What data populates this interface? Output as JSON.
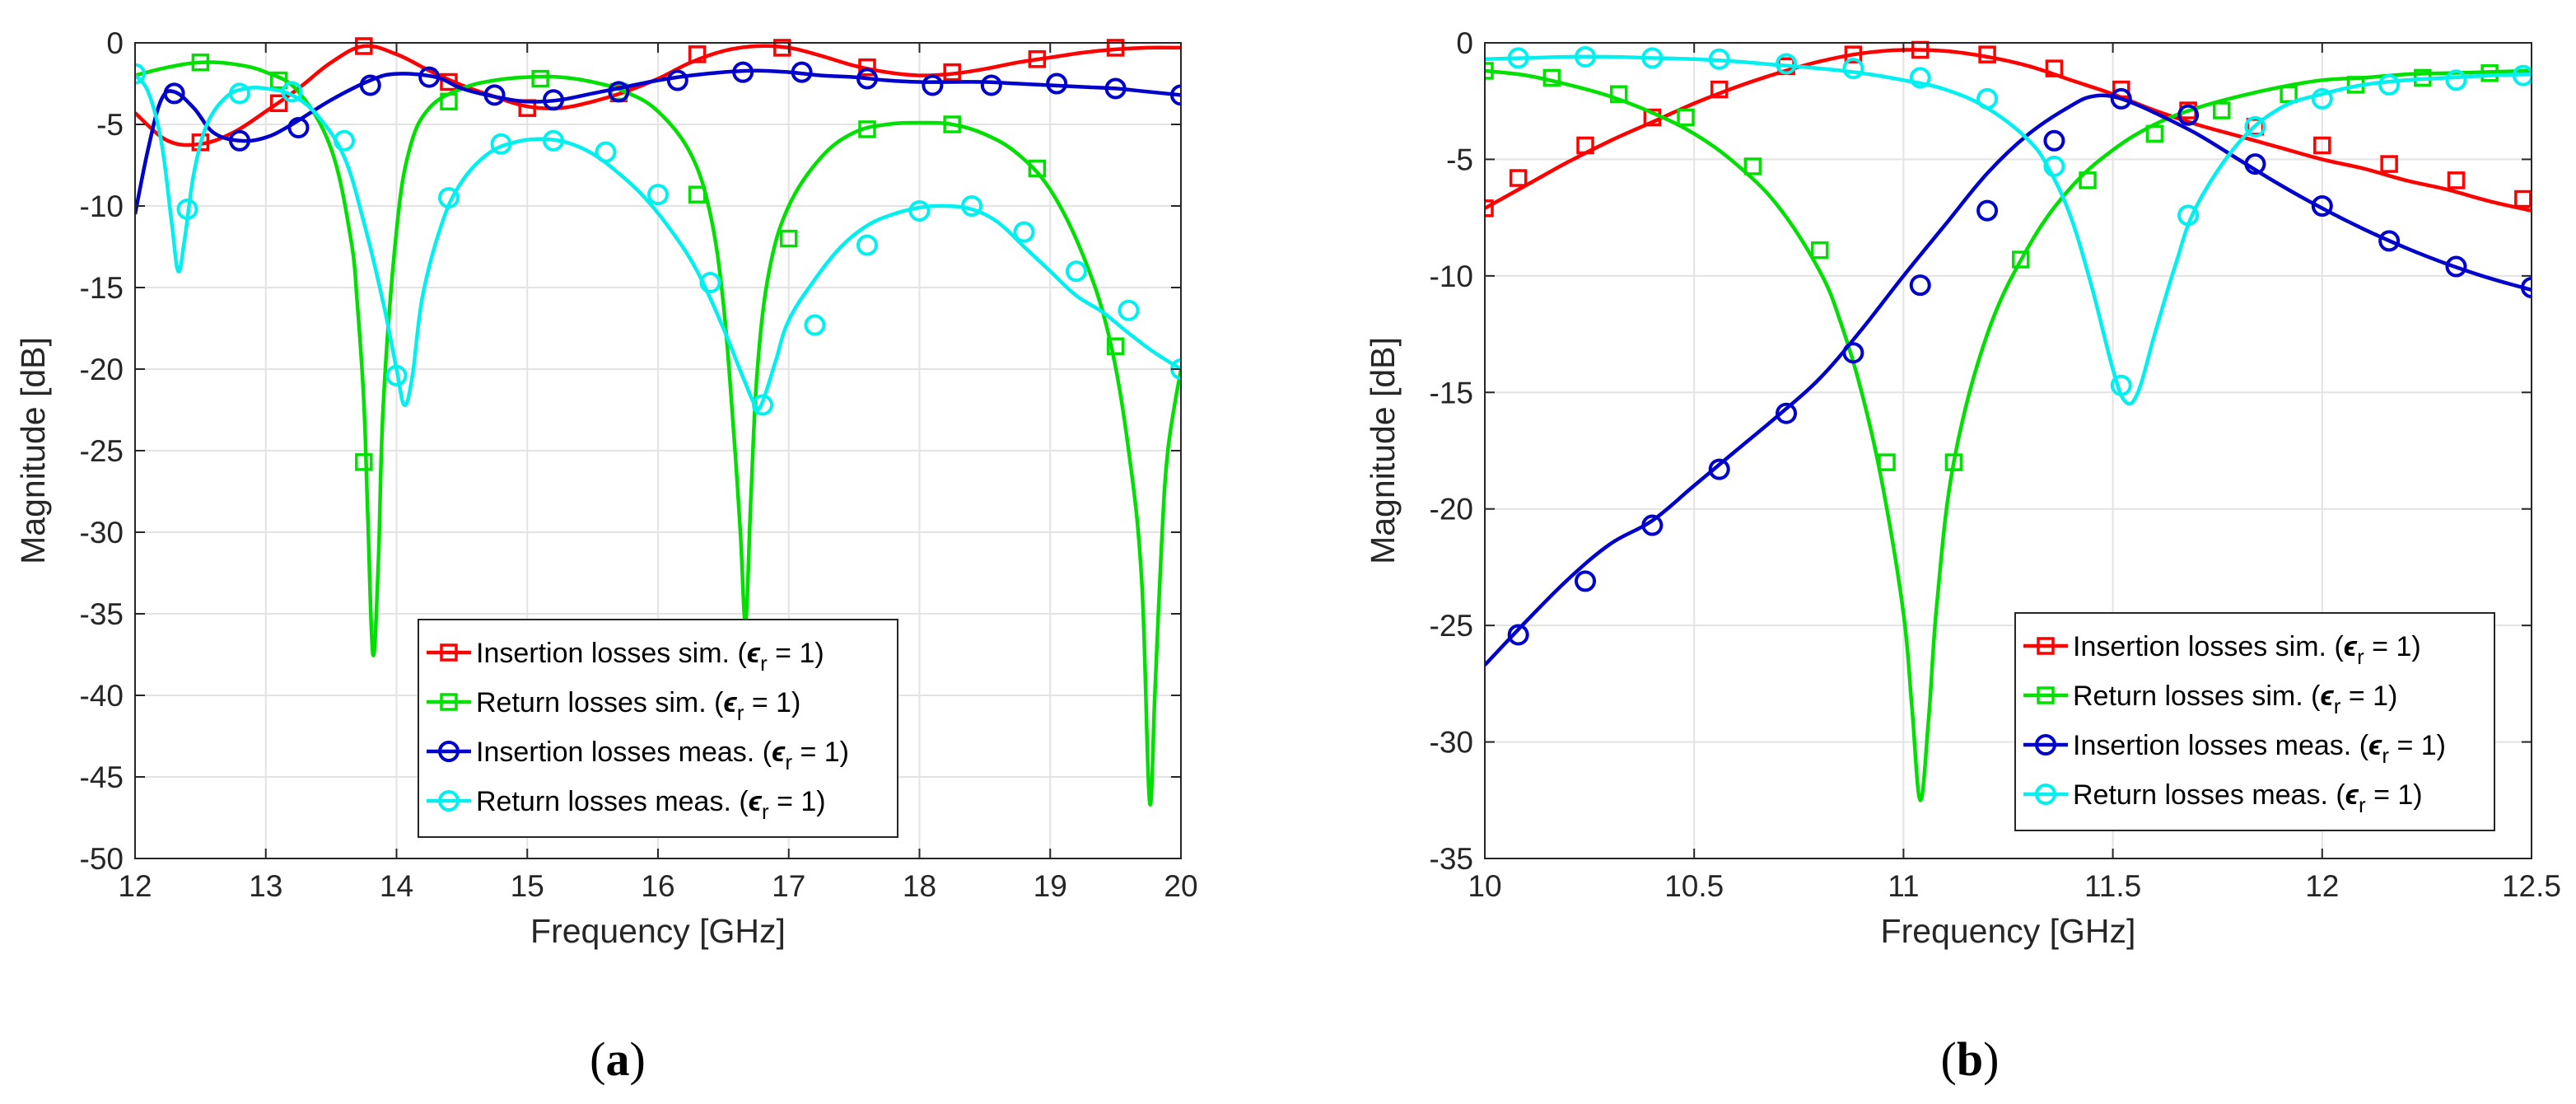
{
  "colors": {
    "ins_sim": "#ff0000",
    "ret_sim": "#00e000",
    "ins_meas": "#0000cc",
    "ret_meas": "#00f0f0"
  },
  "chart_data": [
    {
      "type": "line",
      "subfigure_label": "a",
      "xlabel": "Frequency [GHz]",
      "ylabel": "Magnitude [dB]",
      "xlim": [
        12,
        20
      ],
      "ylim": [
        -50,
        0
      ],
      "xticks": [
        12,
        13,
        14,
        15,
        16,
        17,
        18,
        19,
        20
      ],
      "yticks": [
        0,
        -5,
        -10,
        -15,
        -20,
        -25,
        -30,
        -35,
        -40,
        -45,
        -50
      ],
      "grid": true,
      "legend_placement": "bottom-center",
      "series": [
        {
          "name": "Insertion losses sim.",
          "marker": "square",
          "color_key": "ins_sim",
          "x": [
            12,
            12.25,
            12.5,
            12.75,
            13,
            13.25,
            13.5,
            13.75,
            14,
            14.25,
            14.5,
            14.75,
            15,
            15.25,
            15.5,
            15.75,
            16,
            16.25,
            16.5,
            16.75,
            17,
            17.25,
            17.5,
            17.75,
            18,
            18.25,
            18.5,
            18.75,
            19,
            19.25,
            19.5,
            19.75,
            20
          ],
          "y": [
            -4.3,
            -6.0,
            -6.2,
            -5.5,
            -4.2,
            -2.8,
            -1.2,
            -0.2,
            -0.7,
            -1.7,
            -2.6,
            -3.3,
            -3.9,
            -4.0,
            -3.6,
            -3.0,
            -2.2,
            -1.2,
            -0.5,
            -0.2,
            -0.3,
            -0.8,
            -1.4,
            -1.8,
            -2.0,
            -1.9,
            -1.6,
            -1.2,
            -0.9,
            -0.6,
            -0.4,
            -0.3,
            -0.3
          ],
          "markers_x": [
            12.5,
            13.1,
            13.75,
            14.4,
            15.0,
            15.7,
            16.3,
            16.95,
            17.6,
            18.25,
            18.9,
            19.5
          ],
          "markers_y": [
            -6.1,
            -3.7,
            -0.2,
            -2.4,
            -4.0,
            -3.1,
            -0.7,
            -0.3,
            -1.5,
            -1.8,
            -1.0,
            -0.3
          ]
        },
        {
          "name": "Return losses sim.",
          "marker": "square",
          "color_key": "ret_sim",
          "x": [
            12,
            12.25,
            12.5,
            12.75,
            13,
            13.25,
            13.5,
            13.65,
            13.7,
            13.75,
            13.78,
            13.82,
            13.86,
            13.9,
            14,
            14.1,
            14.25,
            14.5,
            14.75,
            15,
            15.25,
            15.5,
            15.75,
            16,
            16.25,
            16.4,
            16.5,
            16.58,
            16.63,
            16.67,
            16.71,
            16.76,
            16.85,
            17,
            17.25,
            17.5,
            17.75,
            18,
            18.25,
            18.5,
            18.75,
            19,
            19.25,
            19.45,
            19.6,
            19.7,
            19.76,
            19.8,
            19.85,
            19.9,
            20
          ],
          "y": [
            -2.0,
            -1.5,
            -1.2,
            -1.3,
            -1.8,
            -3.0,
            -6.5,
            -12.0,
            -16.0,
            -22.0,
            -29.0,
            -37.5,
            -32.0,
            -22.0,
            -11.5,
            -6.5,
            -4.0,
            -2.8,
            -2.3,
            -2.1,
            -2.1,
            -2.4,
            -3.0,
            -4.2,
            -6.8,
            -10.5,
            -16.0,
            -24.0,
            -30.0,
            -35.5,
            -28.0,
            -20.0,
            -14.0,
            -10.0,
            -7.0,
            -5.5,
            -5.0,
            -4.9,
            -5.0,
            -5.6,
            -6.8,
            -9.0,
            -13.0,
            -18.0,
            -25.0,
            -33.0,
            -46.5,
            -40.0,
            -31.0,
            -25.0,
            -20.0
          ],
          "markers_x": [
            12.5,
            13.1,
            13.75,
            14.4,
            15.1,
            15.7,
            16.3,
            17.0,
            17.6,
            18.25,
            18.9,
            19.5
          ],
          "markers_y": [
            -1.2,
            -2.3,
            -25.7,
            -3.6,
            -2.2,
            -3.0,
            -9.3,
            -12.0,
            -5.3,
            -5.0,
            -7.7,
            -18.6
          ]
        },
        {
          "name": "Insertion losses meas.",
          "marker": "circle",
          "color_key": "ins_meas",
          "x": [
            12,
            12.1,
            12.2,
            12.3,
            12.45,
            12.6,
            12.8,
            13.0,
            13.2,
            13.5,
            13.8,
            14.0,
            14.3,
            14.5,
            14.75,
            15.0,
            15.25,
            15.5,
            15.75,
            16.0,
            16.25,
            16.5,
            16.75,
            17.0,
            17.25,
            17.5,
            17.75,
            18.0,
            18.25,
            18.5,
            18.75,
            19.0,
            19.25,
            19.5,
            19.75,
            20
          ],
          "y": [
            -10.5,
            -6.5,
            -3.5,
            -3.0,
            -4.0,
            -5.5,
            -6.0,
            -5.8,
            -5.0,
            -3.5,
            -2.3,
            -1.9,
            -2.1,
            -2.8,
            -3.3,
            -3.6,
            -3.5,
            -3.1,
            -2.7,
            -2.3,
            -2.0,
            -1.8,
            -1.7,
            -1.8,
            -2.0,
            -2.1,
            -2.3,
            -2.4,
            -2.4,
            -2.4,
            -2.5,
            -2.6,
            -2.7,
            -2.8,
            -3.0,
            -3.2
          ],
          "markers_x": [
            12.3,
            12.8,
            13.25,
            13.8,
            14.25,
            14.75,
            15.2,
            15.7,
            16.15,
            16.65,
            17.1,
            17.6,
            18.1,
            18.55,
            19.05,
            19.5,
            20.0
          ],
          "markers_y": [
            -3.1,
            -6.0,
            -5.2,
            -2.6,
            -2.1,
            -3.2,
            -3.5,
            -3.0,
            -2.3,
            -1.8,
            -1.8,
            -2.2,
            -2.6,
            -2.6,
            -2.5,
            -2.8,
            -3.2
          ]
        },
        {
          "name": "Return losses meas.",
          "marker": "circle",
          "color_key": "ret_meas",
          "x": [
            12,
            12.1,
            12.2,
            12.28,
            12.33,
            12.38,
            12.45,
            12.55,
            12.7,
            12.85,
            13.0,
            13.2,
            13.4,
            13.6,
            13.75,
            13.9,
            14.0,
            14.06,
            14.12,
            14.2,
            14.35,
            14.5,
            14.7,
            14.9,
            15.1,
            15.3,
            15.5,
            15.7,
            15.9,
            16.1,
            16.3,
            16.5,
            16.65,
            16.75,
            16.8,
            16.9,
            17.0,
            17.2,
            17.4,
            17.6,
            17.8,
            18.0,
            18.2,
            18.4,
            18.6,
            18.8,
            19.0,
            19.2,
            19.4,
            19.6,
            19.8,
            20
          ],
          "y": [
            -2.0,
            -3.0,
            -6.0,
            -11.0,
            -14.0,
            -12.0,
            -8.0,
            -5.0,
            -3.3,
            -2.8,
            -2.8,
            -3.2,
            -4.5,
            -7.0,
            -11.0,
            -16.0,
            -20.0,
            -22.2,
            -20.5,
            -15.5,
            -11.0,
            -8.5,
            -6.8,
            -6.1,
            -5.9,
            -6.1,
            -6.8,
            -8.0,
            -9.5,
            -11.5,
            -14.0,
            -17.5,
            -20.5,
            -22.3,
            -22.0,
            -19.5,
            -17.0,
            -14.5,
            -12.5,
            -11.2,
            -10.5,
            -10.1,
            -10.0,
            -10.2,
            -11.0,
            -12.5,
            -14.0,
            -15.5,
            -16.5,
            -17.8,
            -19.0,
            -20.0
          ],
          "markers_x": [
            12.0,
            12.4,
            12.8,
            13.2,
            13.6,
            14.0,
            14.4,
            14.8,
            15.2,
            15.6,
            16.0,
            16.4,
            16.8,
            17.2,
            17.6,
            18.0,
            18.4,
            18.8,
            19.2,
            19.6,
            20.0
          ],
          "markers_y": [
            -1.9,
            -10.2,
            -3.1,
            -3.0,
            -6.0,
            -20.4,
            -9.5,
            -6.2,
            -6.0,
            -6.7,
            -9.3,
            -14.7,
            -22.2,
            -17.3,
            -12.4,
            -10.3,
            -10.0,
            -11.6,
            -14.0,
            -16.4,
            -20.0
          ]
        }
      ],
      "legend": [
        {
          "label": "Insertion losses sim. (",
          "eps": "ϵ",
          "sub": "r",
          "eq": " = 1)"
        },
        {
          "label": "Return losses sim. (",
          "eps": "ϵ",
          "sub": "r",
          "eq": " = 1)"
        },
        {
          "label": "Insertion losses meas. (",
          "eps": "ϵ",
          "sub": "r",
          "eq": " = 1)"
        },
        {
          "label": "Return losses meas. (",
          "eps": "ϵ",
          "sub": "r",
          "eq": " = 1)"
        }
      ]
    },
    {
      "type": "line",
      "subfigure_label": "b",
      "xlabel": "Frequency [GHz]",
      "ylabel": "Magnitude [dB]",
      "xlim": [
        10,
        12.5
      ],
      "ylim": [
        -35,
        0
      ],
      "xticks": [
        10,
        10.5,
        11,
        11.5,
        12,
        12.5
      ],
      "yticks": [
        0,
        -5,
        -10,
        -15,
        -20,
        -25,
        -30,
        -35
      ],
      "grid": true,
      "legend_placement": "bottom-right",
      "series": [
        {
          "name": "Insertion losses sim.",
          "marker": "square",
          "color_key": "ins_sim",
          "x": [
            10,
            10.1,
            10.2,
            10.3,
            10.4,
            10.5,
            10.6,
            10.7,
            10.8,
            10.9,
            11.0,
            11.1,
            11.2,
            11.3,
            11.4,
            11.5,
            11.6,
            11.7,
            11.8,
            11.9,
            12.0,
            12.1,
            12.2,
            12.3,
            12.4,
            12.5
          ],
          "y": [
            -7.1,
            -6.1,
            -5.1,
            -4.2,
            -3.4,
            -2.6,
            -1.9,
            -1.3,
            -0.8,
            -0.45,
            -0.3,
            -0.35,
            -0.6,
            -1.0,
            -1.6,
            -2.2,
            -2.9,
            -3.5,
            -4.0,
            -4.5,
            -5.0,
            -5.4,
            -5.9,
            -6.3,
            -6.8,
            -7.2
          ],
          "markers_x": [
            10.0,
            10.08,
            10.24,
            10.4,
            10.56,
            10.72,
            10.88,
            11.04,
            11.2,
            11.36,
            11.52,
            11.68,
            11.84,
            12.0,
            12.16,
            12.32,
            12.48
          ],
          "markers_y": [
            -7.1,
            -5.8,
            -4.4,
            -3.2,
            -2.0,
            -1.0,
            -0.5,
            -0.3,
            -0.5,
            -1.1,
            -2.0,
            -2.9,
            -3.6,
            -4.4,
            -5.2,
            -5.9,
            -6.7
          ]
        },
        {
          "name": "Return losses sim.",
          "marker": "square",
          "color_key": "ret_sim",
          "x": [
            10,
            10.1,
            10.2,
            10.3,
            10.4,
            10.5,
            10.6,
            10.7,
            10.8,
            10.85,
            10.9,
            10.95,
            11.0,
            11.02,
            11.04,
            11.06,
            11.08,
            11.12,
            11.2,
            11.3,
            11.4,
            11.5,
            11.6,
            11.7,
            11.8,
            11.9,
            12.0,
            12.1,
            12.2,
            12.3,
            12.4,
            12.5
          ],
          "y": [
            -1.2,
            -1.4,
            -1.8,
            -2.3,
            -3.0,
            -3.9,
            -5.2,
            -7.0,
            -9.8,
            -12.0,
            -15.0,
            -19.0,
            -24.5,
            -28.5,
            -32.5,
            -29.0,
            -24.0,
            -18.0,
            -12.5,
            -8.7,
            -6.2,
            -4.6,
            -3.5,
            -2.8,
            -2.3,
            -1.9,
            -1.6,
            -1.5,
            -1.35,
            -1.3,
            -1.25,
            -1.2
          ],
          "markers_x": [
            10.0,
            10.16,
            10.32,
            10.48,
            10.64,
            10.8,
            10.96,
            11.12,
            11.28,
            11.44,
            11.6,
            11.76,
            11.92,
            12.08,
            12.24,
            12.4
          ],
          "markers_y": [
            -1.2,
            -1.5,
            -2.2,
            -3.2,
            -5.3,
            -8.9,
            -18.0,
            -18.0,
            -9.3,
            -5.9,
            -3.9,
            -2.9,
            -2.2,
            -1.8,
            -1.5,
            -1.3
          ]
        },
        {
          "name": "Insertion losses meas.",
          "marker": "circle",
          "color_key": "ins_meas",
          "x": [
            10,
            10.1,
            10.2,
            10.3,
            10.4,
            10.5,
            10.6,
            10.7,
            10.8,
            10.9,
            11.0,
            11.1,
            11.2,
            11.3,
            11.4,
            11.45,
            11.5,
            11.55,
            11.6,
            11.7,
            11.8,
            11.9,
            12.0,
            12.1,
            12.2,
            12.3,
            12.4,
            12.5
          ],
          "y": [
            -26.7,
            -24.8,
            -23.0,
            -21.5,
            -20.5,
            -19.0,
            -17.5,
            -16.0,
            -14.4,
            -12.3,
            -10.0,
            -7.8,
            -5.6,
            -3.9,
            -2.7,
            -2.3,
            -2.3,
            -2.6,
            -3.0,
            -3.9,
            -5.0,
            -6.1,
            -7.1,
            -8.0,
            -8.8,
            -9.5,
            -10.1,
            -10.6
          ],
          "markers_x": [
            10.08,
            10.24,
            10.4,
            10.56,
            10.72,
            10.88,
            11.04,
            11.2,
            11.36,
            11.52,
            11.68,
            11.84,
            12.0,
            12.16,
            12.32,
            12.5
          ],
          "markers_y": [
            -25.4,
            -23.1,
            -20.7,
            -18.3,
            -15.9,
            -13.3,
            -10.4,
            -7.2,
            -4.2,
            -2.4,
            -3.1,
            -5.2,
            -7.0,
            -8.5,
            -9.6,
            -10.5
          ]
        },
        {
          "name": "Return losses meas.",
          "marker": "circle",
          "color_key": "ret_meas",
          "x": [
            10,
            10.1,
            10.2,
            10.3,
            10.4,
            10.5,
            10.6,
            10.7,
            10.8,
            10.9,
            11.0,
            11.1,
            11.2,
            11.3,
            11.35,
            11.4,
            11.45,
            11.5,
            11.53,
            11.56,
            11.6,
            11.65,
            11.7,
            11.8,
            11.9,
            12.0,
            12.1,
            12.2,
            12.3,
            12.4,
            12.5
          ],
          "y": [
            -0.7,
            -0.65,
            -0.6,
            -0.6,
            -0.65,
            -0.7,
            -0.8,
            -0.95,
            -1.1,
            -1.3,
            -1.6,
            -2.0,
            -2.8,
            -4.2,
            -5.5,
            -7.5,
            -10.5,
            -14.0,
            -15.4,
            -15.0,
            -12.5,
            -9.5,
            -7.0,
            -4.3,
            -2.8,
            -2.2,
            -1.8,
            -1.6,
            -1.5,
            -1.4,
            -1.35
          ],
          "markers_x": [
            10.08,
            10.24,
            10.4,
            10.56,
            10.72,
            10.88,
            11.04,
            11.2,
            11.36,
            11.52,
            11.68,
            11.84,
            12.0,
            12.16,
            12.32,
            12.48
          ],
          "markers_y": [
            -0.65,
            -0.6,
            -0.65,
            -0.7,
            -0.9,
            -1.1,
            -1.5,
            -2.4,
            -5.3,
            -14.7,
            -7.4,
            -3.6,
            -2.4,
            -1.8,
            -1.6,
            -1.4
          ]
        }
      ],
      "legend": [
        {
          "label": "Insertion losses sim. (",
          "eps": "ϵ",
          "sub": "r",
          "eq": " = 1)"
        },
        {
          "label": "Return losses sim. (",
          "eps": "ϵ",
          "sub": "r",
          "eq": " = 1)"
        },
        {
          "label": "Insertion losses meas. (",
          "eps": "ϵ",
          "sub": "r",
          "eq": " = 1)"
        },
        {
          "label": "Return losses meas. (",
          "eps": "ϵ",
          "sub": "r",
          "eq": " = 1)"
        }
      ]
    }
  ],
  "captions": [
    {
      "open": "(",
      "letter": "a",
      "close": ")"
    },
    {
      "open": "(",
      "letter": "b",
      "close": ")"
    }
  ]
}
